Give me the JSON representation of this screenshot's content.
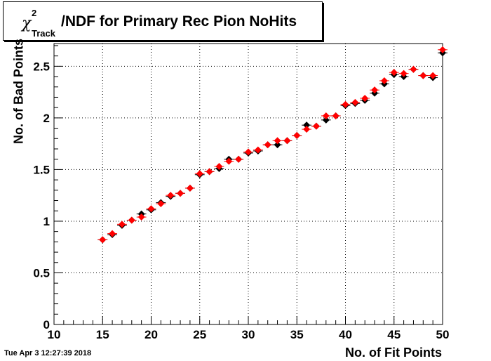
{
  "header": {
    "title_symbol": "χ",
    "title_sup": "2",
    "title_sub": "Track",
    "title_rest": "/NDF for Primary Rec Pion NoHits"
  },
  "footer": {
    "timestamp": "Tue Apr  3 12:27:39 2018"
  },
  "chart_data": {
    "type": "scatter",
    "title": "χ²_Track/NDF for Primary Rec Pion NoHits",
    "xlabel": "No. of Fit Points",
    "ylabel": "No. of Bad Points",
    "xlim": [
      10,
      50
    ],
    "ylim": [
      0,
      2.72
    ],
    "xticks": [
      10,
      15,
      20,
      25,
      30,
      35,
      40,
      45,
      50
    ],
    "yticks": [
      0,
      0.5,
      1,
      1.5,
      2,
      2.5
    ],
    "grid": true,
    "series": [
      {
        "color": "#000000",
        "x": [
          15,
          16,
          17,
          18,
          19,
          20,
          21,
          22,
          23,
          24,
          25,
          26,
          27,
          28,
          29,
          30,
          31,
          32,
          33,
          34,
          35,
          36,
          37,
          38,
          39,
          40,
          41,
          42,
          43,
          44,
          45,
          46,
          47,
          48,
          49,
          50
        ],
        "y": [
          0.82,
          0.87,
          0.96,
          1.01,
          1.07,
          1.11,
          1.18,
          1.24,
          1.27,
          1.32,
          1.45,
          1.48,
          1.51,
          1.6,
          1.6,
          1.66,
          1.68,
          1.74,
          1.74,
          1.78,
          1.83,
          1.93,
          1.92,
          1.98,
          2.02,
          2.12,
          2.14,
          2.17,
          2.24,
          2.33,
          2.42,
          2.4,
          2.47,
          2.41,
          2.39,
          2.63
        ]
      },
      {
        "color": "#ff0000",
        "x": [
          15,
          16,
          17,
          18,
          19,
          20,
          21,
          22,
          23,
          24,
          25,
          26,
          27,
          28,
          29,
          30,
          31,
          32,
          33,
          34,
          35,
          36,
          37,
          38,
          39,
          40,
          41,
          42,
          43,
          44,
          45,
          46,
          47,
          48,
          49,
          50
        ],
        "y": [
          0.82,
          0.88,
          0.97,
          1.01,
          1.04,
          1.12,
          1.17,
          1.25,
          1.27,
          1.32,
          1.46,
          1.48,
          1.53,
          1.58,
          1.6,
          1.67,
          1.69,
          1.74,
          1.78,
          1.78,
          1.83,
          1.89,
          1.92,
          2.02,
          2.02,
          2.13,
          2.15,
          2.19,
          2.27,
          2.36,
          2.44,
          2.43,
          2.47,
          2.41,
          2.41,
          2.66
        ]
      }
    ]
  }
}
